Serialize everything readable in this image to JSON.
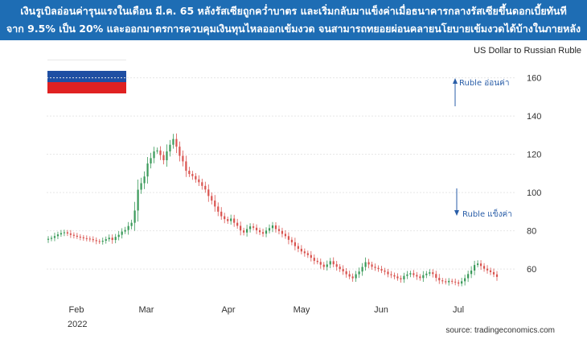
{
  "header": {
    "line1": "เงินรูเบิลอ่อนค่ารุนแรงในเดือน มี.ค. 65 หลังรัสเซียถูกคว่ำบาตร และเริ่มกลับมาแข็งค่าเมื่อธนาคารกลางรัสเซียขึ้นดอกเบี้ยทันที",
    "line2": "จาก 9.5% เป็น 20% และออกมาตรการควบคุมเงินทุนไหลออกเข้มงวด จนสามารถทยอยผ่อนคลายนโยบายเข้มงวดได้บ้างในภายหลัง"
  },
  "source": "source: tradingeconomics.com",
  "colors": {
    "banner": "#1e6db4",
    "up": "#3a9a5a",
    "down": "#d9534f",
    "annotation": "#2a5ea8"
  },
  "chart_data": {
    "type": "candlestick",
    "title": "US Dollar to Russian Ruble",
    "year_label": "2022",
    "x_ticks": [
      "Feb",
      "Mar",
      "Apr",
      "May",
      "Jun",
      "Jul"
    ],
    "y_ticks": [
      60,
      80,
      100,
      120,
      140,
      160
    ],
    "ylim": [
      47,
      167
    ],
    "annotations": {
      "weaker": "Ruble อ่อนค่า",
      "stronger": "Ruble แข็งค่า"
    },
    "values": [
      75.8,
      76.3,
      77.2,
      78.1,
      78.8,
      79.2,
      78.6,
      77.9,
      77.4,
      76.9,
      76.6,
      76.1,
      75.9,
      75.6,
      75.1,
      74.6,
      74.3,
      74.8,
      75.6,
      76.4,
      75.2,
      76.8,
      77.9,
      79.6,
      80.4,
      82.5,
      84.2,
      90.6,
      101.5,
      104.9,
      108.4,
      115.2,
      118.0,
      121.5,
      122.0,
      119.6,
      116.9,
      121.5,
      125.0,
      128.0,
      124.0,
      119.2,
      116.3,
      111.4,
      109.7,
      108.6,
      106.9,
      105.4,
      103.5,
      101.6,
      98.2,
      95.8,
      92.7,
      90.0,
      87.6,
      86.1,
      85.1,
      86.4,
      84.2,
      82.6,
      80.2,
      79.1,
      80.9,
      82.3,
      81.6,
      80.3,
      79.3,
      78.5,
      80.1,
      81.4,
      82.8,
      80.9,
      79.9,
      78.4,
      77.2,
      75.3,
      74.0,
      72.0,
      70.6,
      69.2,
      68.3,
      67.3,
      65.9,
      64.3,
      63.7,
      62.3,
      61.1,
      62.4,
      64.1,
      62.5,
      61.2,
      60.0,
      58.8,
      57.3,
      56.1,
      55.2,
      57.3,
      58.7,
      61.1,
      63.6,
      62.4,
      61.2,
      60.6,
      60.0,
      59.2,
      58.6,
      57.3,
      56.8,
      56.1,
      55.2,
      54.6,
      56.4,
      57.2,
      57.8,
      56.9,
      56.1,
      55.3,
      56.8,
      57.6,
      58.3,
      57.4,
      55.4,
      54.1,
      53.6,
      53.1,
      53.8,
      53.4,
      53.0,
      52.4,
      53.6,
      55.2,
      57.4,
      59.2,
      62.1,
      62.9,
      61.6,
      60.2,
      59.3,
      58.4,
      57.2,
      55.9
    ]
  }
}
